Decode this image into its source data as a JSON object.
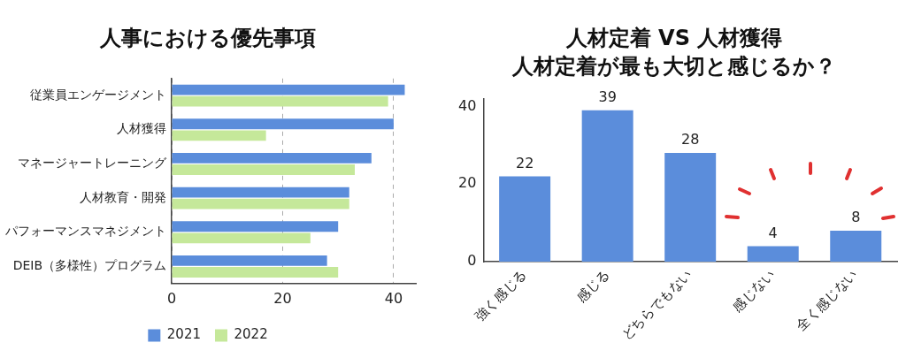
{
  "chart_data": [
    {
      "type": "bar",
      "orientation": "horizontal",
      "title": "人事における優先事項",
      "categories": [
        "従業員エンゲージメント",
        "人材獲得",
        "マネージャートレーニング",
        "人材教育・開発",
        "パフォーマンスマネジメント",
        "DEIB（多様性）プログラム"
      ],
      "series": [
        {
          "name": "2021",
          "color": "#5b8ddb",
          "values": [
            42,
            40,
            36,
            32,
            30,
            28
          ]
        },
        {
          "name": "2022",
          "color": "#c5e89a",
          "values": [
            39,
            17,
            33,
            32,
            25,
            30
          ]
        }
      ],
      "xlim": [
        0,
        44
      ],
      "xticks": [
        0,
        20,
        40
      ],
      "grid": "x",
      "legend": "bottom"
    },
    {
      "type": "bar",
      "title": "人材定着 VS 人材獲得",
      "subtitle": "人材定着が最も大切と感じるか？",
      "categories": [
        "強く感じる",
        "感じる",
        "どちらでもない",
        "感じない",
        "全く感じない"
      ],
      "values": [
        22,
        39,
        28,
        4,
        8
      ],
      "color": "#5b8ddb",
      "ylim": [
        0,
        42
      ],
      "yticks": [
        0,
        20,
        40
      ],
      "data_labels": true
    }
  ]
}
